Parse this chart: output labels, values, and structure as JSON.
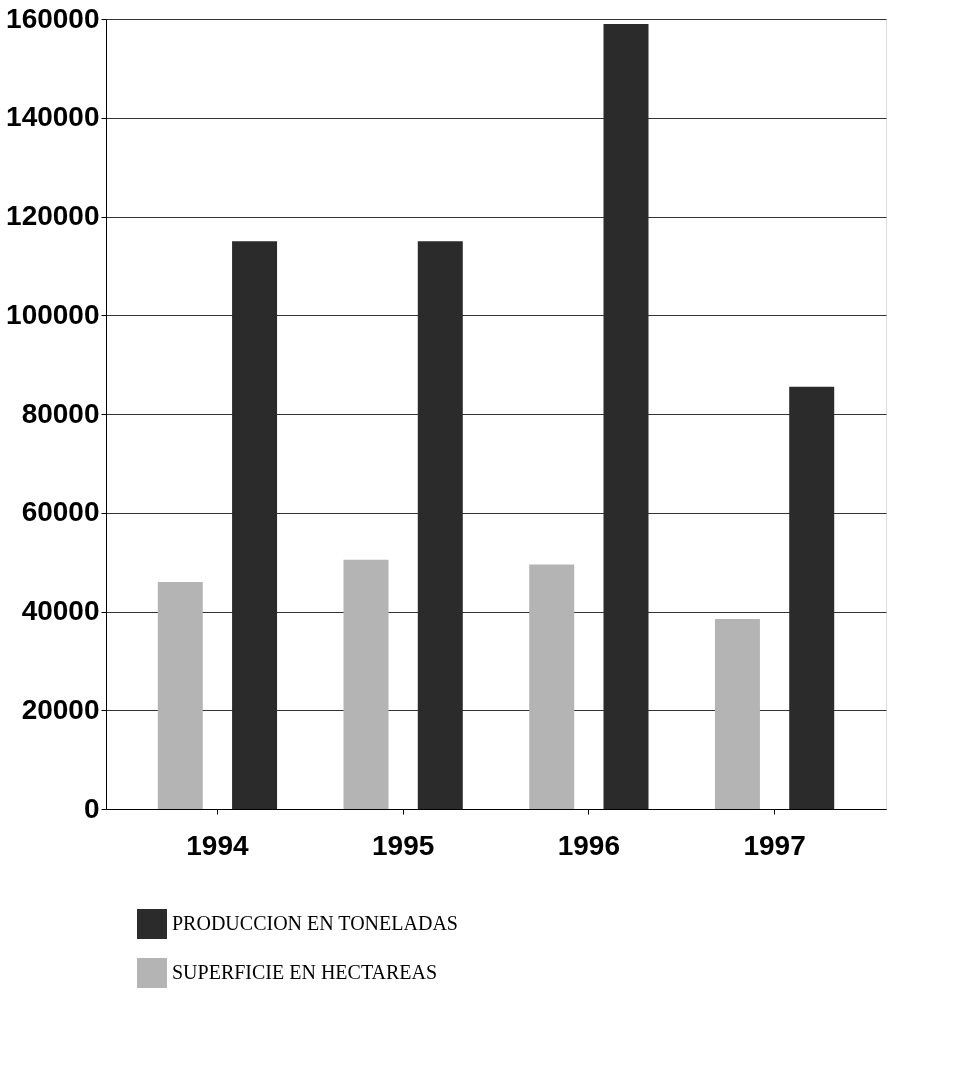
{
  "chart_data": {
    "type": "bar",
    "categories": [
      "1994",
      "1995",
      "1996",
      "1997"
    ],
    "series": [
      {
        "name": "PRODUCCION EN TONELADAS",
        "color": "#2b2b2b",
        "values": [
          115000,
          115000,
          159000,
          85500
        ]
      },
      {
        "name": "SUPERFICIE EN HECTAREAS",
        "color": "#b4b4b4",
        "values": [
          46000,
          50500,
          49500,
          38500
        ]
      }
    ],
    "ylim": [
      0,
      160000
    ],
    "yticks": [
      0,
      20000,
      40000,
      60000,
      80000,
      100000,
      120000,
      140000,
      160000
    ],
    "grid": "y",
    "legend": "bottom"
  }
}
